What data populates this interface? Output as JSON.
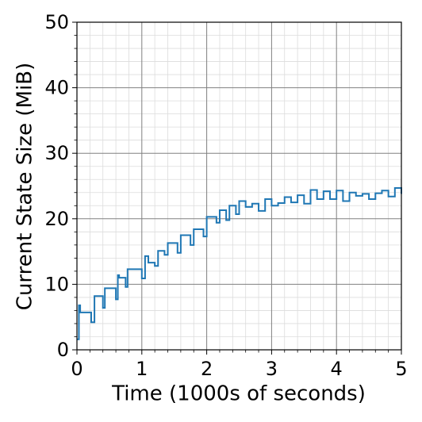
{
  "chart_data": {
    "type": "line",
    "drawstyle": "steps-post",
    "xlabel": "Time (1000s of seconds)",
    "ylabel": "Current State Size (MiB)",
    "xlim": [
      0,
      5
    ],
    "ylim": [
      0,
      50
    ],
    "xticks": [
      0,
      1,
      2,
      3,
      4,
      5
    ],
    "yticks": [
      0,
      10,
      20,
      30,
      40,
      50
    ],
    "grid": true,
    "minor_grid": true,
    "x": [
      0,
      0.03,
      0.05,
      0.22,
      0.27,
      0.4,
      0.43,
      0.6,
      0.63,
      0.65,
      0.75,
      0.78,
      1.0,
      1.05,
      1.1,
      1.2,
      1.25,
      1.35,
      1.4,
      1.55,
      1.6,
      1.75,
      1.8,
      1.95,
      2.0,
      2.15,
      2.2,
      2.3,
      2.35,
      2.45,
      2.5,
      2.6,
      2.7,
      2.8,
      2.9,
      3.0,
      3.1,
      3.2,
      3.3,
      3.4,
      3.5,
      3.6,
      3.7,
      3.8,
      3.9,
      4.0,
      4.1,
      4.2,
      4.3,
      4.4,
      4.5,
      4.6,
      4.7,
      4.8,
      4.9,
      5.0
    ],
    "series": [
      {
        "color": "#1f77b4",
        "values": [
          1.6,
          6.8,
          5.7,
          4.2,
          8.2,
          6.4,
          9.4,
          7.7,
          11.4,
          11,
          9.6,
          12.3,
          10.9,
          14.3,
          13.3,
          12.8,
          15.1,
          14.5,
          16.3,
          14.8,
          17.5,
          16.0,
          18.4,
          17.3,
          20.3,
          19.4,
          21.3,
          19.8,
          22.0,
          20.7,
          22.7,
          21.8,
          22.3,
          21.2,
          23.0,
          22.0,
          22.4,
          23.3,
          22.5,
          23.6,
          22.3,
          24.4,
          23.0,
          24.2,
          23.0,
          24.3,
          22.7,
          24.0,
          23.5,
          23.8,
          23.0,
          23.9,
          24.3,
          23.4,
          24.7,
          23.8
        ]
      }
    ]
  }
}
